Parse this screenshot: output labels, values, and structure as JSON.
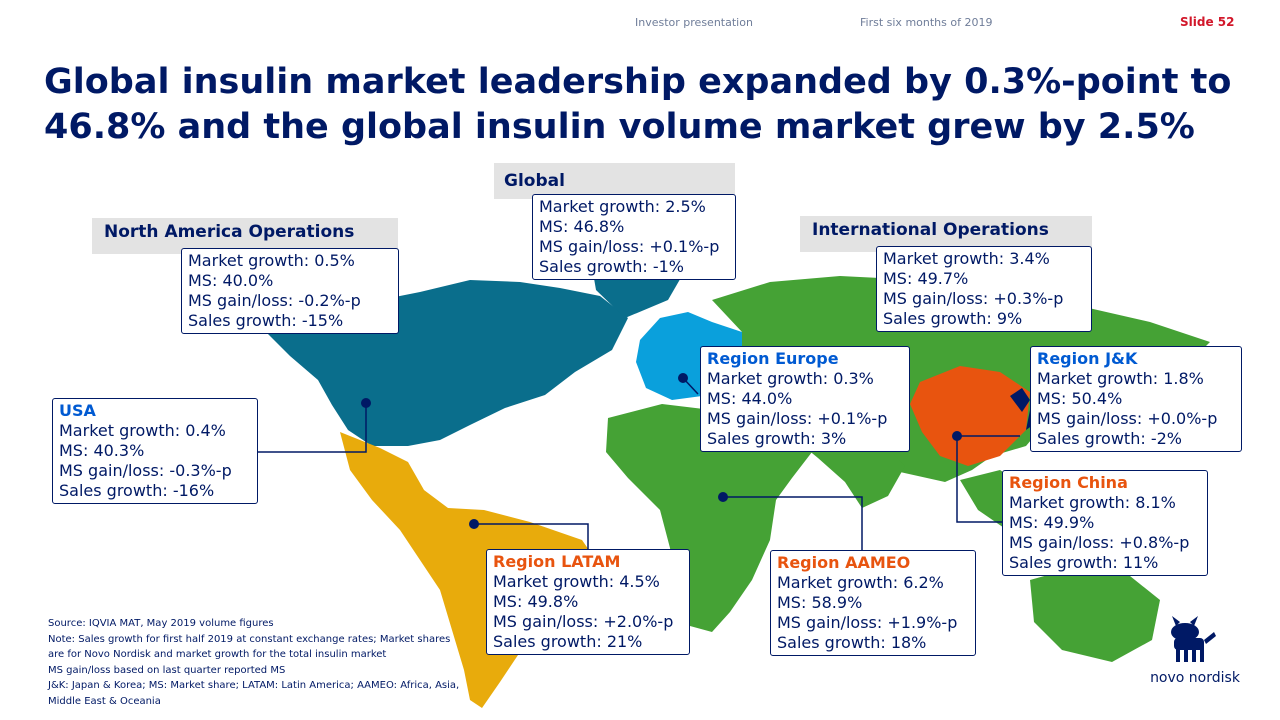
{
  "header": {
    "presentation": "Investor presentation",
    "period": "First six months of 2019",
    "slide": "Slide 52"
  },
  "title": "Global insulin market leadership expanded by 0.3%-point to 46.8% and the global insulin volume market grew by 2.5%",
  "global": {
    "label": "Global",
    "lines": [
      "Market growth: 2.5%",
      "MS: 46.8%",
      "MS gain/loss: +0.1%-p",
      "Sales growth: -1%"
    ]
  },
  "north_america": {
    "label": "North America Operations",
    "lines": [
      "Market growth: 0.5%",
      "MS: 40.0%",
      "MS gain/loss: -0.2%-p",
      "Sales growth: -15%"
    ]
  },
  "international": {
    "label": "International Operations",
    "lines": [
      "Market growth: 3.4%",
      "MS: 49.7%",
      "MS gain/loss: +0.3%-p",
      "Sales growth: 9%"
    ]
  },
  "usa": {
    "label": "USA",
    "lines": [
      "Market growth: 0.4%",
      "MS: 40.3%",
      "MS gain/loss: -0.3%-p",
      "Sales growth: -16%"
    ]
  },
  "europe": {
    "label": "Region Europe",
    "lines": [
      "Market growth: 0.3%",
      "MS: 44.0%",
      "MS gain/loss: +0.1%-p",
      "Sales growth: 3%"
    ]
  },
  "jk": {
    "label": "Region J&K",
    "lines": [
      "Market growth: 1.8%",
      "MS: 50.4%",
      "MS gain/loss: +0.0%-p",
      "Sales growth: -2%"
    ]
  },
  "china": {
    "label": "Region China",
    "lines": [
      "Market growth: 8.1%",
      "MS: 49.9%",
      "MS gain/loss: +0.8%-p",
      "Sales growth: 11%"
    ]
  },
  "latam": {
    "label": "Region LATAM",
    "lines": [
      "Market growth: 4.5%",
      "MS: 49.8%",
      "MS gain/loss: +2.0%-p",
      "Sales growth: 21%"
    ]
  },
  "aameo": {
    "label": "Region AAMEO",
    "lines": [
      "Market growth: 6.2%",
      "MS: 58.9%",
      "MS gain/loss: +1.9%-p",
      "Sales growth: 18%"
    ]
  },
  "footnotes": [
    "Source: IQVIA MAT, May 2019 volume figures",
    "Note: Sales growth for first half 2019 at constant exchange rates; Market shares are for Novo Nordisk and market growth for the total insulin market",
    "MS gain/loss based on last quarter reported MS",
    "J&K: Japan & Korea; MS: Market share; LATAM: Latin America; AAMEO: Africa, Asia, Middle East & Oceania"
  ],
  "logo": {
    "text": "novo nordisk"
  },
  "colors": {
    "navy": "#001965",
    "north_america": "#0a6e8c",
    "europe": "#0aa0dc",
    "latam": "#e8ab0c",
    "aameo": "#45a235",
    "china": "#e8540f",
    "jk": "#001965",
    "accent_red": "#d2172a"
  }
}
